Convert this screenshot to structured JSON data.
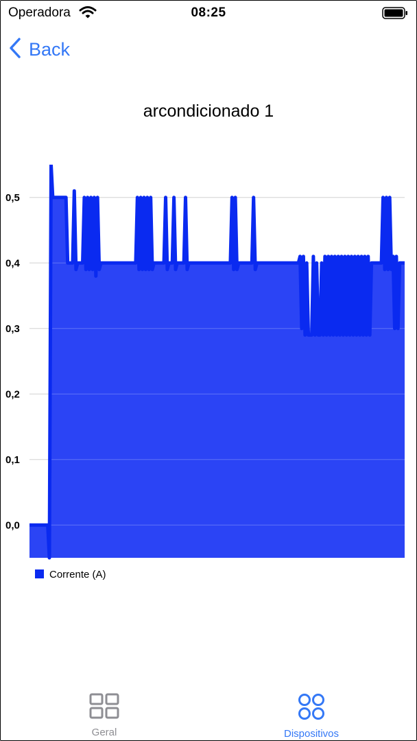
{
  "status_bar": {
    "carrier": "Operadora",
    "time": "08:25",
    "icons": [
      "wifi-icon",
      "battery-icon"
    ]
  },
  "nav": {
    "back_label": "Back",
    "back_icon": "chevron-left-icon"
  },
  "colors": {
    "accent": "#3478f6",
    "series_fill": "#2b44f5",
    "series_line": "#0a2af0",
    "inactive": "#8e8e93"
  },
  "chart_data": {
    "type": "area",
    "title": "arcondicionado 1",
    "xlabel": "",
    "ylabel": "",
    "ylim": [
      -0.05,
      0.55
    ],
    "yticks": [
      0.0,
      0.1,
      0.2,
      0.3,
      0.4,
      0.5
    ],
    "ytick_labels": [
      "0,0",
      "0,1",
      "0,2",
      "0,3",
      "0,4",
      "0,5"
    ],
    "grid": true,
    "legend_position": "bottom-left",
    "series": [
      {
        "name": "Corrente (A)",
        "y": [
          0,
          0,
          0,
          0,
          0,
          0,
          0,
          0,
          0,
          0,
          0,
          0,
          -0.05,
          0.55,
          0.5,
          0.5,
          0.5,
          0.5,
          0.5,
          0.5,
          0.5,
          0.5,
          0.5,
          0.4,
          0.4,
          0.4,
          0.4,
          0.51,
          0.39,
          0.4,
          0.4,
          0.4,
          0.4,
          0.5,
          0.39,
          0.5,
          0.39,
          0.5,
          0.39,
          0.5,
          0.38,
          0.5,
          0.39,
          0.4,
          0.4,
          0.4,
          0.4,
          0.4,
          0.4,
          0.4,
          0.4,
          0.4,
          0.4,
          0.4,
          0.4,
          0.4,
          0.4,
          0.4,
          0.4,
          0.4,
          0.4,
          0.4,
          0.4,
          0.4,
          0.4,
          0.5,
          0.39,
          0.5,
          0.39,
          0.5,
          0.39,
          0.5,
          0.39,
          0.5,
          0.39,
          0.4,
          0.4,
          0.4,
          0.4,
          0.4,
          0.4,
          0.4,
          0.5,
          0.39,
          0.4,
          0.4,
          0.4,
          0.5,
          0.39,
          0.4,
          0.4,
          0.4,
          0.4,
          0.4,
          0.5,
          0.39,
          0.4,
          0.4,
          0.4,
          0.4,
          0.4,
          0.4,
          0.4,
          0.4,
          0.4,
          0.4,
          0.4,
          0.4,
          0.4,
          0.4,
          0.4,
          0.4,
          0.4,
          0.4,
          0.4,
          0.4,
          0.4,
          0.4,
          0.4,
          0.4,
          0.4,
          0.4,
          0.5,
          0.39,
          0.5,
          0.39,
          0.4,
          0.4,
          0.4,
          0.4,
          0.4,
          0.4,
          0.4,
          0.4,
          0.4,
          0.5,
          0.39,
          0.4,
          0.4,
          0.4,
          0.4,
          0.4,
          0.4,
          0.4,
          0.4,
          0.4,
          0.4,
          0.4,
          0.4,
          0.4,
          0.4,
          0.4,
          0.4,
          0.4,
          0.4,
          0.4,
          0.4,
          0.4,
          0.4,
          0.4,
          0.4,
          0.4,
          0.4,
          0.41,
          0.3,
          0.41,
          0.29,
          0.4,
          0.29,
          0.29,
          0.29,
          0.41,
          0.29,
          0.4,
          0.29,
          0.29,
          0.4,
          0.29,
          0.41,
          0.29,
          0.41,
          0.29,
          0.41,
          0.29,
          0.41,
          0.29,
          0.41,
          0.29,
          0.41,
          0.29,
          0.41,
          0.29,
          0.41,
          0.29,
          0.41,
          0.29,
          0.41,
          0.29,
          0.41,
          0.29,
          0.41,
          0.29,
          0.41,
          0.29,
          0.41,
          0.29,
          0.4,
          0.4,
          0.4,
          0.4,
          0.4,
          0.4,
          0.4,
          0.5,
          0.39,
          0.5,
          0.39,
          0.5,
          0.39,
          0.41,
          0.3,
          0.41,
          0.3,
          0.4,
          0.4,
          0.4,
          0.4
        ]
      }
    ]
  },
  "tabs": [
    {
      "label": "Geral",
      "icon": "grid-icon",
      "active": false
    },
    {
      "label": "Dispositivos",
      "icon": "four-circles-icon",
      "active": true
    }
  ]
}
